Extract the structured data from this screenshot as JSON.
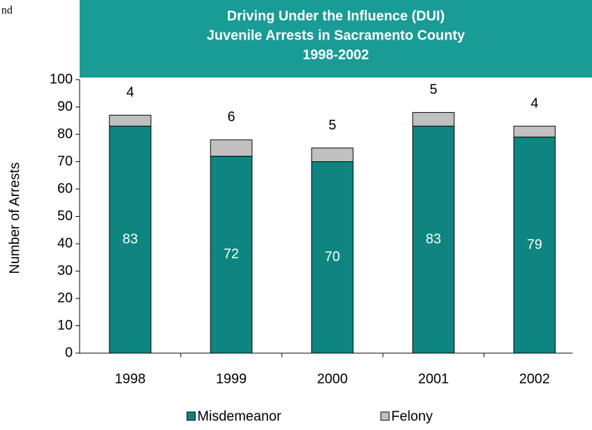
{
  "chart_data": {
    "type": "stacked_bar",
    "title": [
      "Driving Under the Influence (DUI)",
      "Juvenile Arrests in Sacramento County",
      "1998-2002"
    ],
    "annotations": [
      "nd"
    ],
    "y_label": "Number of Arrests",
    "categories": [
      "1998",
      "1999",
      "2000",
      "2001",
      "2002"
    ],
    "series": [
      {
        "name": "Misdemeanor",
        "color": "#0e8580",
        "values": [
          83,
          72,
          70,
          83,
          79
        ]
      },
      {
        "name": "Felony",
        "color": "#c0c0c0",
        "values": [
          4,
          6,
          5,
          5,
          4
        ]
      }
    ],
    "ylim": [
      0,
      100
    ],
    "yticks": [
      0,
      10,
      20,
      30,
      40,
      50,
      60,
      70,
      80,
      90,
      100
    ],
    "title_box_color": "#199b96"
  }
}
